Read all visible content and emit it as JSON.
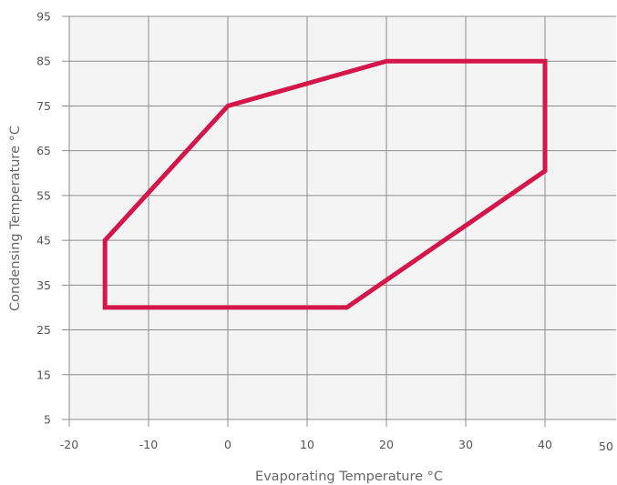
{
  "chart_data": {
    "type": "line",
    "title": "",
    "xlabel": "Evaporating Temperature °C",
    "ylabel": "Condensing Temperature °C",
    "xlim": [
      -20,
      50
    ],
    "ylim": [
      5,
      95
    ],
    "x_ticks": [
      "-20",
      "-10",
      "0",
      "10",
      "20",
      "30",
      "40",
      "50"
    ],
    "y_ticks": [
      "95",
      "85",
      "75",
      "65",
      "55",
      "45",
      "35",
      "25",
      "15",
      "5"
    ],
    "grid": true,
    "legend": "none",
    "series": [
      {
        "closed": true,
        "color": "#d4164a",
        "points": [
          {
            "x": -15.5,
            "y": 45
          },
          {
            "x": 0,
            "y": 75
          },
          {
            "x": 20,
            "y": 85
          },
          {
            "x": 40,
            "y": 85
          },
          {
            "x": 40,
            "y": 60.5
          },
          {
            "x": 15,
            "y": 30
          },
          {
            "x": -15.5,
            "y": 30
          }
        ]
      }
    ],
    "colors": {
      "plot_background": "#f4f4f4",
      "grid": "#8c8c8c",
      "envelope": "#d4164a"
    }
  }
}
